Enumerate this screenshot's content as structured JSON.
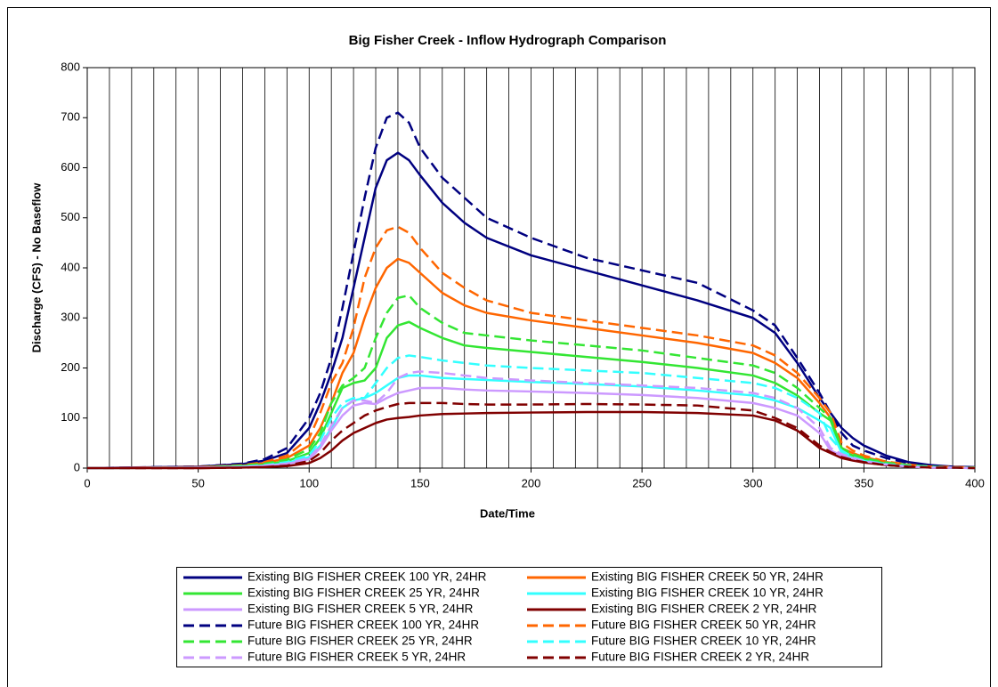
{
  "chart_data": {
    "type": "line",
    "title": "Big Fisher Creek - Inflow Hydrograph Comparison",
    "xlabel": "Date/Time",
    "ylabel": "Discharge (CFS) - No Baseflow",
    "x": [
      0,
      50,
      70,
      80,
      90,
      100,
      105,
      110,
      115,
      120,
      125,
      130,
      135,
      140,
      145,
      150,
      160,
      170,
      180,
      200,
      225,
      250,
      275,
      300,
      310,
      320,
      330,
      335,
      340,
      345,
      350,
      360,
      370,
      380,
      390,
      400
    ],
    "xlim": [
      0,
      400
    ],
    "xticks": [
      0,
      50,
      100,
      150,
      200,
      250,
      300,
      350,
      400
    ],
    "ylim": [
      0,
      800
    ],
    "yticks": [
      0,
      100,
      200,
      300,
      400,
      500,
      600,
      700,
      800
    ],
    "grid": true,
    "series": [
      {
        "name": "Existing BIG FISHER CREEK 100 YR, 24HR",
        "color": "#000080",
        "dash": false,
        "values": [
          0,
          3,
          8,
          15,
          30,
          80,
          130,
          190,
          260,
          360,
          460,
          560,
          615,
          630,
          615,
          585,
          530,
          490,
          460,
          425,
          395,
          365,
          335,
          300,
          270,
          210,
          140,
          110,
          80,
          60,
          45,
          25,
          12,
          6,
          3,
          2
        ]
      },
      {
        "name": "Existing BIG FISHER CREEK 50 YR, 24HR",
        "color": "#ff6600",
        "dash": false,
        "values": [
          0,
          2,
          5,
          10,
          20,
          45,
          80,
          130,
          190,
          230,
          300,
          360,
          400,
          418,
          410,
          390,
          350,
          325,
          310,
          295,
          280,
          265,
          250,
          230,
          210,
          180,
          130,
          100,
          40,
          30,
          22,
          12,
          6,
          3,
          2,
          1
        ]
      },
      {
        "name": "Existing BIG FISHER CREEK 25 YR, 24HR",
        "color": "#33e633",
        "dash": false,
        "values": [
          0,
          1,
          4,
          7,
          14,
          30,
          60,
          110,
          160,
          170,
          175,
          200,
          260,
          285,
          292,
          280,
          260,
          245,
          240,
          232,
          222,
          212,
          200,
          185,
          170,
          145,
          110,
          95,
          35,
          25,
          18,
          10,
          5,
          2,
          1,
          1
        ]
      },
      {
        "name": "Existing BIG FISHER CREEK 10 YR, 24HR",
        "color": "#33ffff",
        "dash": false,
        "values": [
          0,
          1,
          3,
          5,
          10,
          22,
          45,
          80,
          120,
          135,
          140,
          150,
          165,
          180,
          185,
          185,
          180,
          178,
          176,
          172,
          168,
          163,
          155,
          145,
          135,
          120,
          95,
          80,
          30,
          20,
          14,
          8,
          4,
          2,
          1,
          0
        ]
      },
      {
        "name": "Existing BIG FISHER CREEK 5 YR, 24HR",
        "color": "#cc99ff",
        "dash": false,
        "values": [
          0,
          1,
          2,
          4,
          8,
          18,
          40,
          75,
          105,
          125,
          130,
          128,
          140,
          150,
          155,
          160,
          160,
          157,
          155,
          153,
          150,
          146,
          140,
          130,
          120,
          105,
          70,
          35,
          25,
          18,
          12,
          6,
          3,
          1,
          1,
          0
        ]
      },
      {
        "name": "Existing BIG FISHER CREEK 2 YR, 24HR",
        "color": "#800000",
        "dash": false,
        "values": [
          0,
          0,
          1,
          2,
          4,
          10,
          20,
          35,
          55,
          70,
          80,
          90,
          97,
          100,
          102,
          105,
          108,
          109,
          110,
          111,
          112,
          112,
          110,
          105,
          95,
          75,
          40,
          30,
          20,
          15,
          11,
          6,
          3,
          1,
          1,
          0
        ]
      },
      {
        "name": "Future BIG FISHER CREEK 100 YR, 24HR",
        "color": "#000080",
        "dash": true,
        "values": [
          0,
          3,
          9,
          18,
          40,
          100,
          150,
          220,
          320,
          430,
          540,
          640,
          700,
          710,
          690,
          640,
          580,
          540,
          500,
          460,
          420,
          395,
          370,
          315,
          285,
          220,
          150,
          110,
          70,
          45,
          35,
          20,
          10,
          5,
          2,
          1
        ]
      },
      {
        "name": "Future BIG FISHER CREEK 50 YR, 24HR",
        "color": "#ff6600",
        "dash": true,
        "values": [
          0,
          2,
          6,
          12,
          25,
          60,
          110,
          170,
          210,
          280,
          380,
          440,
          475,
          482,
          470,
          440,
          390,
          360,
          335,
          310,
          295,
          280,
          265,
          245,
          225,
          190,
          140,
          110,
          50,
          35,
          25,
          13,
          7,
          3,
          2,
          1
        ]
      },
      {
        "name": "Future BIG FISHER CREEK 25 YR, 24HR",
        "color": "#33e633",
        "dash": true,
        "values": [
          0,
          1,
          5,
          9,
          17,
          38,
          70,
          130,
          165,
          180,
          200,
          260,
          310,
          340,
          345,
          320,
          290,
          270,
          265,
          255,
          245,
          235,
          220,
          205,
          190,
          160,
          120,
          100,
          40,
          28,
          20,
          11,
          6,
          3,
          1,
          1
        ]
      },
      {
        "name": "Future BIG FISHER CREEK 10 YR, 24HR",
        "color": "#33ffff",
        "dash": true,
        "values": [
          0,
          1,
          3,
          6,
          12,
          26,
          55,
          100,
          130,
          140,
          140,
          170,
          200,
          220,
          225,
          222,
          215,
          210,
          205,
          200,
          195,
          190,
          180,
          170,
          160,
          140,
          110,
          60,
          35,
          22,
          15,
          8,
          4,
          2,
          1,
          0
        ]
      },
      {
        "name": "Future BIG FISHER CREEK 5 YR, 24HR",
        "color": "#cc99ff",
        "dash": true,
        "values": [
          0,
          1,
          2,
          5,
          9,
          20,
          45,
          85,
          120,
          135,
          135,
          130,
          150,
          180,
          190,
          193,
          190,
          185,
          180,
          175,
          170,
          165,
          160,
          150,
          140,
          120,
          80,
          40,
          28,
          20,
          14,
          7,
          3,
          1,
          1,
          0
        ]
      },
      {
        "name": "Future BIG FISHER CREEK 2 YR, 24HR",
        "color": "#800000",
        "dash": true,
        "values": [
          0,
          0,
          1,
          2,
          5,
          14,
          30,
          55,
          75,
          90,
          105,
          115,
          122,
          128,
          130,
          130,
          130,
          128,
          127,
          127,
          128,
          127,
          125,
          115,
          100,
          80,
          45,
          32,
          22,
          16,
          12,
          6,
          3,
          1,
          1,
          0
        ]
      }
    ]
  }
}
